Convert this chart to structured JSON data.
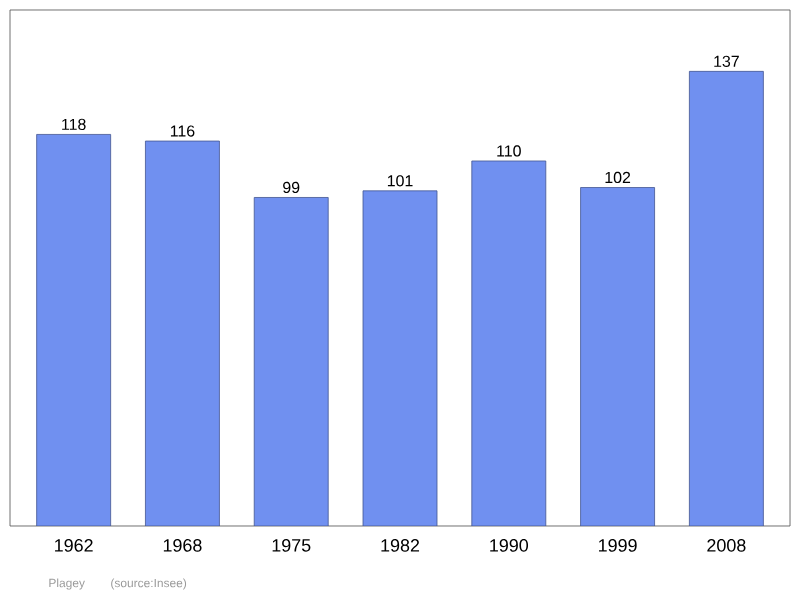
{
  "chart_data": {
    "type": "bar",
    "categories": [
      "1962",
      "1968",
      "1975",
      "1982",
      "1990",
      "1999",
      "2008"
    ],
    "values": [
      118,
      116,
      99,
      101,
      110,
      102,
      137
    ],
    "color": "#7090f0",
    "data_labels": true,
    "annotations": [
      "Plagey",
      "(source:Insee)"
    ]
  }
}
